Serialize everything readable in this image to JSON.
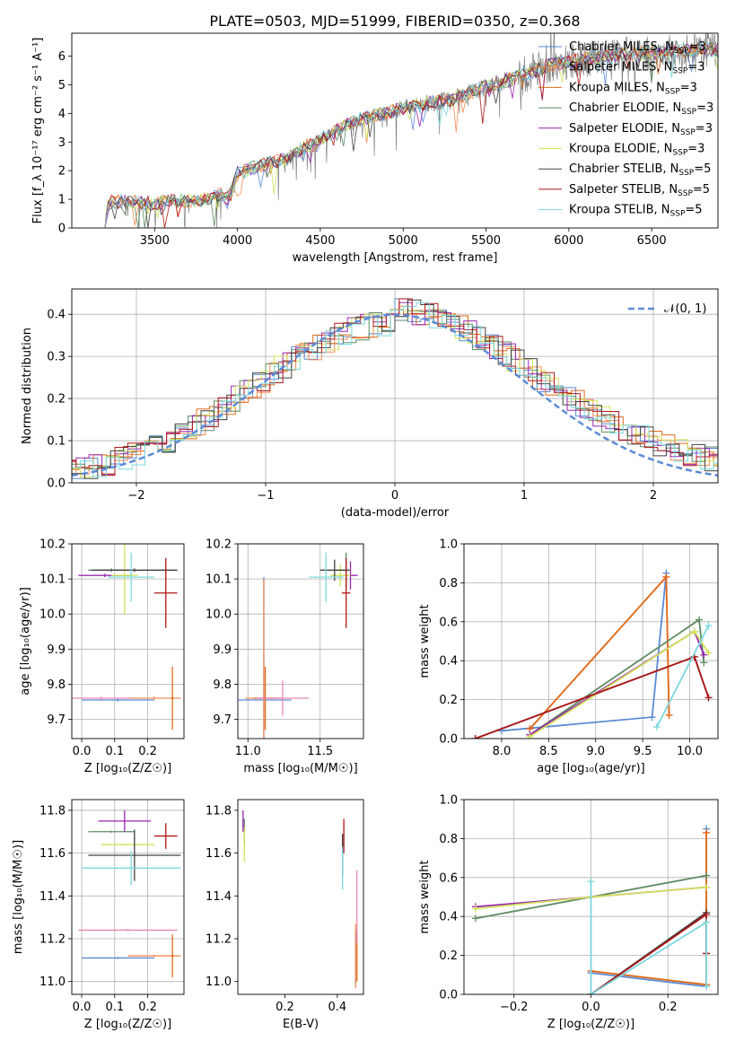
{
  "figure_title": "PLATE=0503, MJD=51999, FIBERID=0350, z=0.368",
  "colors": {
    "Chabrier MILES": "#5b8bd6",
    "Salpeter MILES": "#f38c57",
    "Kroupa MILES": "#e16b1a",
    "Chabrier ELODIE": "#5e8b63",
    "Salpeter ELODIE": "#9b27b0",
    "Kroupa ELODIE": "#d2e35a",
    "Chabrier STELIB": "#404040",
    "Salpeter STELIB": "#b01818",
    "Kroupa STELIB": "#7ad8de",
    "data": "#808080",
    "extra": "#e887b6"
  },
  "chart_data": [
    {
      "id": "spectrum",
      "type": "line",
      "xlabel": "wavelength [Angstrom, rest frame]",
      "ylabel": "Flux [f_λ 10⁻¹⁷ erg cm⁻² s⁻¹ A⁻¹]",
      "xlim": [
        3000,
        6900
      ],
      "ylim": [
        0,
        6.8
      ],
      "xticks": [
        3500,
        4000,
        4500,
        5000,
        5500,
        6000,
        6500
      ],
      "yticks": [
        0,
        1,
        2,
        3,
        4,
        5,
        6
      ],
      "legend": "upper right",
      "legend_entries": [
        {
          "key": "Chabrier MILES",
          "label": "Chabrier MILES, N",
          "sub": "SSP",
          "suffix": "=3"
        },
        {
          "key": "Salpeter MILES",
          "label": "Salpeter MILES, N",
          "sub": "SSP",
          "suffix": "=3"
        },
        {
          "key": "Kroupa MILES",
          "label": "Kroupa MILES, N",
          "sub": "SSP",
          "suffix": "=3"
        },
        {
          "key": "Chabrier ELODIE",
          "label": "Chabrier ELODIE, N",
          "sub": "SSP",
          "suffix": "=3"
        },
        {
          "key": "Salpeter ELODIE",
          "label": "Salpeter ELODIE, N",
          "sub": "SSP",
          "suffix": "=3"
        },
        {
          "key": "Kroupa ELODIE",
          "label": "Kroupa ELODIE, N",
          "sub": "SSP",
          "suffix": "=3"
        },
        {
          "key": "Chabrier STELIB",
          "label": "Chabrier STELIB, N",
          "sub": "SSP",
          "suffix": "=5"
        },
        {
          "key": "Salpeter STELIB",
          "label": "Salpeter STELIB, N",
          "sub": "SSP",
          "suffix": "=5"
        },
        {
          "key": "Kroupa STELIB",
          "label": "Kroupa STELIB, N",
          "sub": "SSP",
          "suffix": "=5"
        }
      ],
      "continuum": [
        [
          3200,
          0
        ],
        [
          3210,
          0.7
        ],
        [
          3240,
          0.9
        ],
        [
          3300,
          0.92
        ],
        [
          3400,
          0.9
        ],
        [
          3500,
          0.85
        ],
        [
          3600,
          0.95
        ],
        [
          3700,
          0.95
        ],
        [
          3800,
          1.0
        ],
        [
          3900,
          1.2
        ],
        [
          3950,
          1.0
        ],
        [
          4000,
          1.9
        ],
        [
          4100,
          2.1
        ],
        [
          4200,
          2.3
        ],
        [
          4300,
          2.4
        ],
        [
          4400,
          2.8
        ],
        [
          4500,
          3.1
        ],
        [
          4600,
          3.4
        ],
        [
          4700,
          3.7
        ],
        [
          4800,
          3.9
        ],
        [
          4900,
          4.0
        ],
        [
          5000,
          4.2
        ],
        [
          5100,
          4.3
        ],
        [
          5200,
          4.4
        ],
        [
          5300,
          4.5
        ],
        [
          5400,
          4.7
        ],
        [
          5500,
          4.9
        ],
        [
          5600,
          5.1
        ],
        [
          5700,
          5.3
        ],
        [
          5800,
          5.5
        ],
        [
          5900,
          5.7
        ],
        [
          6000,
          5.8
        ],
        [
          6100,
          5.9
        ],
        [
          6200,
          6.0
        ],
        [
          6300,
          6.05
        ],
        [
          6400,
          6.1
        ],
        [
          6500,
          6.1
        ],
        [
          6600,
          6.15
        ],
        [
          6700,
          6.2
        ],
        [
          6900,
          6.25
        ]
      ]
    },
    {
      "id": "residual-histogram",
      "type": "line",
      "xlabel": "(data-model)/error",
      "ylabel": "Normed distribution",
      "xlim": [
        -2.5,
        2.5
      ],
      "ylim": [
        0,
        0.46
      ],
      "xticks": [
        -2,
        -1,
        0,
        1,
        2
      ],
      "yticks": [
        0.0,
        0.1,
        0.2,
        0.3,
        0.4
      ],
      "grid": true,
      "legend": "upper right",
      "legend_label": "𝒩(0, 1)",
      "gaussian": {
        "mean": 0,
        "sigma": 1
      }
    },
    {
      "id": "age-vs-Z",
      "type": "scatter",
      "xlabel": "Z [log₁₀(Z/Z☉)]",
      "ylabel": "age  [log₁₀(age/yr)]",
      "xlim": [
        -0.03,
        0.31
      ],
      "ylim": [
        9.645,
        10.2
      ],
      "xticks": [
        0.0,
        0.1,
        0.2
      ],
      "yticks": [
        9.7,
        9.8,
        9.9,
        10.0,
        10.1,
        10.2
      ],
      "grid": true,
      "points": [
        {
          "key": "Chabrier MILES",
          "x": 0.11,
          "y": 9.755,
          "xerr": 0.11,
          "yerr": 0.005
        },
        {
          "key": "Salpeter MILES",
          "x": 0.22,
          "y": 9.76,
          "xerr": 0.08,
          "yerr": 0.005
        },
        {
          "key": "Kroupa MILES",
          "x": 0.275,
          "y": 9.76,
          "xerr": 0.005,
          "yerr": 0.09
        },
        {
          "key": "Chabrier ELODIE",
          "x": 0.09,
          "y": 10.125,
          "xerr": 0.07,
          "yerr": 0.005
        },
        {
          "key": "Salpeter ELODIE",
          "x": 0.07,
          "y": 10.11,
          "xerr": 0.08,
          "yerr": 0.005
        },
        {
          "key": "Kroupa ELODIE",
          "x": 0.13,
          "y": 10.11,
          "xerr": 0.04,
          "yerr": 0.11
        },
        {
          "key": "Chabrier STELIB",
          "x": 0.16,
          "y": 10.125,
          "xerr": 0.13,
          "yerr": 0.005
        },
        {
          "key": "Salpeter STELIB",
          "x": 0.255,
          "y": 10.06,
          "xerr": 0.035,
          "yerr": 0.1
        },
        {
          "key": "Kroupa STELIB",
          "x": 0.15,
          "y": 10.105,
          "xerr": 0.07,
          "yerr": 0.07
        },
        {
          "key": "extra",
          "x": 0.06,
          "y": 9.76,
          "xerr": 0.09,
          "yerr": 0.005
        }
      ]
    },
    {
      "id": "age-vs-mass",
      "type": "scatter",
      "xlabel": "mass [log₁₀(M/M☉)]",
      "ylabel": "",
      "xlim": [
        10.93,
        11.8
      ],
      "ylim": [
        9.645,
        10.2
      ],
      "xticks": [
        11.0,
        11.5
      ],
      "yticks": [
        9.7,
        9.8,
        9.9,
        10.0,
        10.1,
        10.2
      ],
      "grid": true,
      "points": [
        {
          "key": "Chabrier MILES",
          "x": 11.11,
          "y": 9.755,
          "xerr": 0.19,
          "yerr": 0.35
        },
        {
          "key": "Salpeter MILES",
          "x": 11.11,
          "y": 9.76,
          "xerr": 0.13,
          "yerr": 0.34
        },
        {
          "key": "Kroupa MILES",
          "x": 11.12,
          "y": 9.76,
          "xerr": 0.08,
          "yerr": 0.09
        },
        {
          "key": "Chabrier ELODIE",
          "x": 11.68,
          "y": 10.125,
          "xerr": 0.03,
          "yerr": 0.05
        },
        {
          "key": "Salpeter ELODIE",
          "x": 11.71,
          "y": 10.11,
          "xerr": 0.05,
          "yerr": 0.04
        },
        {
          "key": "Kroupa ELODIE",
          "x": 11.64,
          "y": 10.11,
          "xerr": 0.07,
          "yerr": 0.03
        },
        {
          "key": "Chabrier STELIB",
          "x": 11.6,
          "y": 10.125,
          "xerr": 0.1,
          "yerr": 0.03
        },
        {
          "key": "Salpeter STELIB",
          "x": 11.68,
          "y": 10.06,
          "xerr": 0.03,
          "yerr": 0.1
        },
        {
          "key": "Kroupa STELIB",
          "x": 11.54,
          "y": 10.105,
          "xerr": 0.12,
          "yerr": 0.07
        },
        {
          "key": "extra",
          "x": 11.24,
          "y": 9.76,
          "xerr": 0.18,
          "yerr": 0.05
        }
      ]
    },
    {
      "id": "weight-vs-age",
      "type": "line",
      "xlabel": "age  [log₁₀(age/yr)]",
      "ylabel": "mass weight",
      "xlim": [
        7.6,
        10.3
      ],
      "ylim": [
        0,
        1
      ],
      "xticks": [
        8.0,
        8.5,
        9.0,
        9.5,
        10.0
      ],
      "yticks": [
        0.0,
        0.2,
        0.4,
        0.6,
        0.8,
        1.0
      ],
      "grid": true,
      "series": [
        {
          "key": "Chabrier MILES",
          "x": [
            8.0,
            9.6,
            9.75
          ],
          "y": [
            0.04,
            0.11,
            0.85
          ]
        },
        {
          "key": "Salpeter MILES",
          "x": [
            8.3,
            9.75,
            9.78
          ],
          "y": [
            0.05,
            0.83,
            0.12
          ]
        },
        {
          "key": "Kroupa MILES",
          "x": [
            8.3,
            9.75,
            9.78
          ],
          "y": [
            0.05,
            0.83,
            0.12
          ]
        },
        {
          "key": "Chabrier ELODIE",
          "x": [
            8.3,
            10.1,
            10.15
          ],
          "y": [
            0.02,
            0.61,
            0.39
          ]
        },
        {
          "key": "Salpeter ELODIE",
          "x": [
            8.3,
            10.05,
            10.15
          ],
          "y": [
            0.02,
            0.55,
            0.43
          ]
        },
        {
          "key": "Kroupa ELODIE",
          "x": [
            8.3,
            10.05,
            10.2
          ],
          "y": [
            0.01,
            0.55,
            0.44
          ]
        },
        {
          "key": "Chabrier STELIB",
          "x": [
            7.72,
            10.05,
            10.2
          ],
          "y": [
            0.0,
            0.42,
            0.21
          ]
        },
        {
          "key": "Salpeter STELIB",
          "x": [
            7.72,
            10.05,
            10.2
          ],
          "y": [
            0.0,
            0.42,
            0.21
          ]
        },
        {
          "key": "Kroupa STELIB",
          "x": [
            9.65,
            10.2
          ],
          "y": [
            0.06,
            0.58
          ]
        }
      ]
    },
    {
      "id": "mass-vs-Z",
      "type": "scatter",
      "xlabel": "Z [log₁₀(Z/Z☉)]",
      "ylabel": "mass [log₁₀(M/M☉)]",
      "xlim": [
        -0.03,
        0.31
      ],
      "ylim": [
        10.94,
        11.85
      ],
      "xticks": [
        0.0,
        0.1,
        0.2
      ],
      "yticks": [
        11.0,
        11.2,
        11.4,
        11.6,
        11.8
      ],
      "grid": true,
      "points": [
        {
          "key": "Chabrier MILES",
          "x": 0.11,
          "y": 11.11,
          "xerr": 0.11,
          "yerr": 0.005
        },
        {
          "key": "Salpeter MILES",
          "x": 0.22,
          "y": 11.12,
          "xerr": 0.08,
          "yerr": 0.005
        },
        {
          "key": "Kroupa MILES",
          "x": 0.275,
          "y": 11.12,
          "xerr": 0.005,
          "yerr": 0.1
        },
        {
          "key": "Chabrier ELODIE",
          "x": 0.09,
          "y": 11.7,
          "xerr": 0.07,
          "yerr": 0.005
        },
        {
          "key": "Salpeter ELODIE",
          "x": 0.13,
          "y": 11.75,
          "xerr": 0.08,
          "yerr": 0.05
        },
        {
          "key": "Kroupa ELODIE",
          "x": 0.14,
          "y": 11.64,
          "xerr": 0.08,
          "yerr": 0.005
        },
        {
          "key": "Chabrier STELIB",
          "x": 0.16,
          "y": 11.59,
          "xerr": 0.14,
          "yerr": 0.12
        },
        {
          "key": "Salpeter STELIB",
          "x": 0.255,
          "y": 11.68,
          "xerr": 0.035,
          "yerr": 0.06
        },
        {
          "key": "Kroupa STELIB",
          "x": 0.15,
          "y": 11.53,
          "xerr": 0.15,
          "yerr": 0.08
        },
        {
          "key": "extra",
          "x": 0.14,
          "y": 11.24,
          "xerr": 0.15,
          "yerr": 0.005
        }
      ]
    },
    {
      "id": "mass-vs-ebv",
      "type": "scatter",
      "xlabel": "E(B-V)",
      "ylabel": "",
      "xlim": [
        0.02,
        0.5
      ],
      "ylim": [
        10.94,
        11.85
      ],
      "xticks": [
        0.2,
        0.4
      ],
      "yticks": [
        11.0,
        11.2,
        11.4,
        11.6,
        11.8
      ],
      "grid": false,
      "points": [
        {
          "key": "Chabrier MILES",
          "x": 0.47,
          "y": 11.11,
          "xerr": 0.002,
          "yerr": 0.12
        },
        {
          "key": "Salpeter MILES",
          "x": 0.47,
          "y": 11.12,
          "xerr": 0.002,
          "yerr": 0.15
        },
        {
          "key": "Kroupa MILES",
          "x": 0.475,
          "y": 11.12,
          "xerr": 0.002,
          "yerr": 0.12
        },
        {
          "key": "Chabrier ELODIE",
          "x": 0.045,
          "y": 11.7,
          "xerr": 0.002,
          "yerr": 0.06
        },
        {
          "key": "Salpeter ELODIE",
          "x": 0.04,
          "y": 11.75,
          "xerr": 0.002,
          "yerr": 0.05
        },
        {
          "key": "Kroupa ELODIE",
          "x": 0.045,
          "y": 11.64,
          "xerr": 0.002,
          "yerr": 0.08
        },
        {
          "key": "Chabrier STELIB",
          "x": 0.42,
          "y": 11.59,
          "xerr": 0.002,
          "yerr": 0.1
        },
        {
          "key": "Salpeter STELIB",
          "x": 0.425,
          "y": 11.68,
          "xerr": 0.002,
          "yerr": 0.08
        },
        {
          "key": "Kroupa STELIB",
          "x": 0.42,
          "y": 11.53,
          "xerr": 0.002,
          "yerr": 0.1
        },
        {
          "key": "extra",
          "x": 0.475,
          "y": 11.35,
          "xerr": 0.002,
          "yerr": 0.17
        }
      ]
    },
    {
      "id": "weight-vs-Z",
      "type": "line",
      "xlabel": "Z [log₁₀(Z/Z☉)]",
      "ylabel": "mass weight",
      "xlim": [
        -0.33,
        0.33
      ],
      "ylim": [
        0,
        1
      ],
      "xticks": [
        -0.2,
        0.0,
        0.2
      ],
      "yticks": [
        0.0,
        0.2,
        0.4,
        0.6,
        0.8,
        1.0
      ],
      "grid": true,
      "series": [
        {
          "key": "Chabrier MILES",
          "x": [
            0.0,
            0.3,
            0.3
          ],
          "y": [
            0.11,
            0.04,
            0.85
          ]
        },
        {
          "key": "Salpeter MILES",
          "x": [
            0.0,
            0.3,
            0.3
          ],
          "y": [
            0.12,
            0.05,
            0.83
          ]
        },
        {
          "key": "Kroupa MILES",
          "x": [
            0.0,
            0.3,
            0.3
          ],
          "y": [
            0.12,
            0.05,
            0.83
          ]
        },
        {
          "key": "Chabrier ELODIE",
          "x": [
            -0.3,
            0.0,
            0.3
          ],
          "y": [
            0.39,
            0.5,
            0.61
          ]
        },
        {
          "key": "Salpeter ELODIE",
          "x": [
            -0.3,
            0.0,
            0.3
          ],
          "y": [
            0.45,
            0.5,
            0.55
          ]
        },
        {
          "key": "Kroupa ELODIE",
          "x": [
            -0.3,
            0.0,
            0.3
          ],
          "y": [
            0.44,
            0.5,
            0.55
          ]
        },
        {
          "key": "Chabrier STELIB",
          "x": [
            0.0,
            0.3,
            0.3
          ],
          "y": [
            0.0,
            0.42,
            0.21
          ]
        },
        {
          "key": "Salpeter STELIB",
          "x": [
            0.0,
            0.3,
            0.3
          ],
          "y": [
            0.0,
            0.41,
            0.21
          ]
        },
        {
          "key": "Kroupa STELIB",
          "x": [
            0.0,
            0.0,
            0.3,
            0.3
          ],
          "y": [
            0.58,
            0.0,
            0.37,
            0.04
          ]
        }
      ]
    }
  ]
}
